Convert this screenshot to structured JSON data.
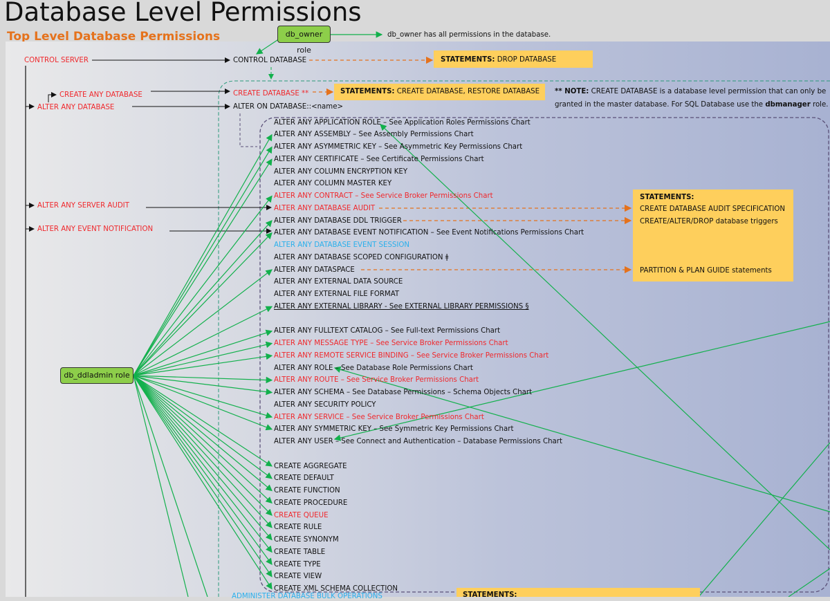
{
  "title": "Database Level Permissions",
  "subtitle": "Top Level Database Permissions",
  "colors": {
    "red": "#f0282c",
    "blue": "#2ab0ec",
    "green_role": "#8dce4a",
    "statement_box": "#fecf5c",
    "orange_dash": "#e5721c",
    "green_line": "#12b04c",
    "purple_dash": "#5a5078"
  },
  "roles": {
    "db_owner": {
      "label": "db_owner role",
      "note": "db_owner has all permissions in the database."
    },
    "db_ddladmin": {
      "label": "db_ddladmin role"
    }
  },
  "server_permissions": {
    "control_server": "CONTROL SERVER",
    "create_any_database": "CREATE ANY DATABASE",
    "alter_any_database": "ALTER ANY DATABASE",
    "alter_any_server_audit": "ALTER ANY SERVER AUDIT",
    "alter_any_event_notification": "ALTER ANY EVENT NOTIFICATION"
  },
  "database_permissions": {
    "control_database": "CONTROL DATABASE",
    "create_database": "CREATE DATABASE **",
    "alter_on_database": "ALTER ON DATABASE::<name>",
    "administer_bulk": "ADMINISTER DATABASE BULK OPERATIONS"
  },
  "statements": {
    "drop": {
      "label": "STATEMENTS:",
      "text": " DROP DATABASE"
    },
    "create": {
      "label": "STATEMENTS:",
      "text": " CREATE DATABASE, RESTORE DATABASE"
    },
    "audit_box": {
      "label": "STATEMENTS:",
      "line1": "CREATE DATABASE AUDIT SPECIFICATION",
      "line2": "CREATE/ALTER/DROP database triggers",
      "line3": "PARTITION & PLAN GUIDE statements"
    },
    "bottom_box": {
      "label": "STATEMENTS:"
    }
  },
  "note": {
    "prefix": "** NOTE:",
    "text1": " CREATE DATABASE is a database level permission that can only be",
    "text2": "granted in the master database. For SQL Database use the ",
    "bold": "dbmanager",
    "text3": " role."
  },
  "permission_groups": [
    [
      {
        "text": "ALTER ANY APPLICATION ROLE – See Application Roles Permissions Chart",
        "color": "black"
      },
      {
        "text": "ALTER ANY ASSEMBLY – See Assembly Permissions Chart",
        "color": "black",
        "ddladmin": true
      },
      {
        "text": "ALTER ANY ASYMMETRIC KEY – See Asymmetric Key Permissions Chart",
        "color": "black",
        "ddladmin": true
      },
      {
        "text": "ALTER ANY CERTIFICATE – See Certificate Permissions Chart",
        "color": "black",
        "ddladmin": true
      },
      {
        "text": "ALTER ANY COLUMN ENCRYPTION KEY",
        "color": "black"
      },
      {
        "text": "ALTER ANY COLUMN MASTER KEY",
        "color": "black"
      },
      {
        "text": "ALTER ANY CONTRACT – See Service Broker Permissions Chart",
        "color": "red",
        "ddladmin": true
      },
      {
        "text": "ALTER ANY DATABASE AUDIT",
        "color": "red"
      },
      {
        "text": "ALTER ANY DATABASE DDL TRIGGER",
        "color": "black",
        "ddladmin": true
      },
      {
        "text": "ALTER ANY DATABASE EVENT NOTIFICATION – See Event Notifications Permissions Chart",
        "color": "black",
        "ddladmin": true
      },
      {
        "text": "ALTER ANY DATABASE EVENT SESSION",
        "color": "blue"
      },
      {
        "text": "ALTER ANY DATABASE SCOPED CONFIGURATION ǂ",
        "color": "black"
      },
      {
        "text": "ALTER ANY DATASPACE",
        "color": "black",
        "ddladmin": true
      },
      {
        "text": "ALTER ANY EXTERNAL DATA SOURCE",
        "color": "black"
      },
      {
        "text": "ALTER ANY EXTERNAL FILE FORMAT",
        "color": "black"
      },
      {
        "text": "ALTER ANY EXTERNAL LIBRARY - See EXTERNAL LIBRARY PERMISSIONS §",
        "color": "black",
        "underline": true,
        "ddladmin": true
      }
    ],
    [
      {
        "text": "ALTER ANY FULLTEXT CATALOG – See Full-text Permissions Chart",
        "color": "black",
        "ddladmin": true
      },
      {
        "text": "ALTER ANY MESSAGE TYPE – See Service Broker Permissions Chart",
        "color": "red",
        "ddladmin": true
      },
      {
        "text": "ALTER ANY REMOTE SERVICE BINDING – See Service Broker Permissions Chart",
        "color": "red",
        "ddladmin": true
      },
      {
        "text": "ALTER ANY ROLE – See Database Role Permissions Chart",
        "color": "black"
      },
      {
        "text": "ALTER ANY ROUTE – See Service Broker Permissions Chart",
        "color": "red",
        "ddladmin": true
      },
      {
        "text": "ALTER ANY SCHEMA – See Database Permissions – Schema Objects Chart",
        "color": "black",
        "ddladmin": true
      },
      {
        "text": "ALTER ANY SECURITY POLICY",
        "color": "black"
      },
      {
        "text": "ALTER ANY SERVICE – See Service Broker Permissions Chart",
        "color": "red",
        "ddladmin": true
      },
      {
        "text": "ALTER ANY SYMMETRIC KEY – See Symmetric Key Permissions Chart",
        "color": "black",
        "ddladmin": true
      },
      {
        "text": "ALTER ANY USER – See Connect and Authentication – Database Permissions Chart",
        "color": "black"
      }
    ],
    [
      {
        "text": "CREATE AGGREGATE",
        "color": "black",
        "ddladmin": true
      },
      {
        "text": "CREATE DEFAULT",
        "color": "black",
        "ddladmin": true
      },
      {
        "text": "CREATE FUNCTION",
        "color": "black",
        "ddladmin": true
      },
      {
        "text": "CREATE PROCEDURE",
        "color": "black",
        "ddladmin": true
      },
      {
        "text": "CREATE QUEUE",
        "color": "red",
        "ddladmin": true
      },
      {
        "text": "CREATE RULE",
        "color": "black",
        "ddladmin": true
      },
      {
        "text": "CREATE SYNONYM",
        "color": "black",
        "ddladmin": true
      },
      {
        "text": "CREATE TABLE",
        "color": "black",
        "ddladmin": true
      },
      {
        "text": "CREATE TYPE",
        "color": "black",
        "ddladmin": true
      },
      {
        "text": "CREATE VIEW",
        "color": "black",
        "ddladmin": true
      },
      {
        "text": "CREATE XML SCHEMA COLLECTION",
        "color": "black",
        "ddladmin": true
      }
    ]
  ]
}
